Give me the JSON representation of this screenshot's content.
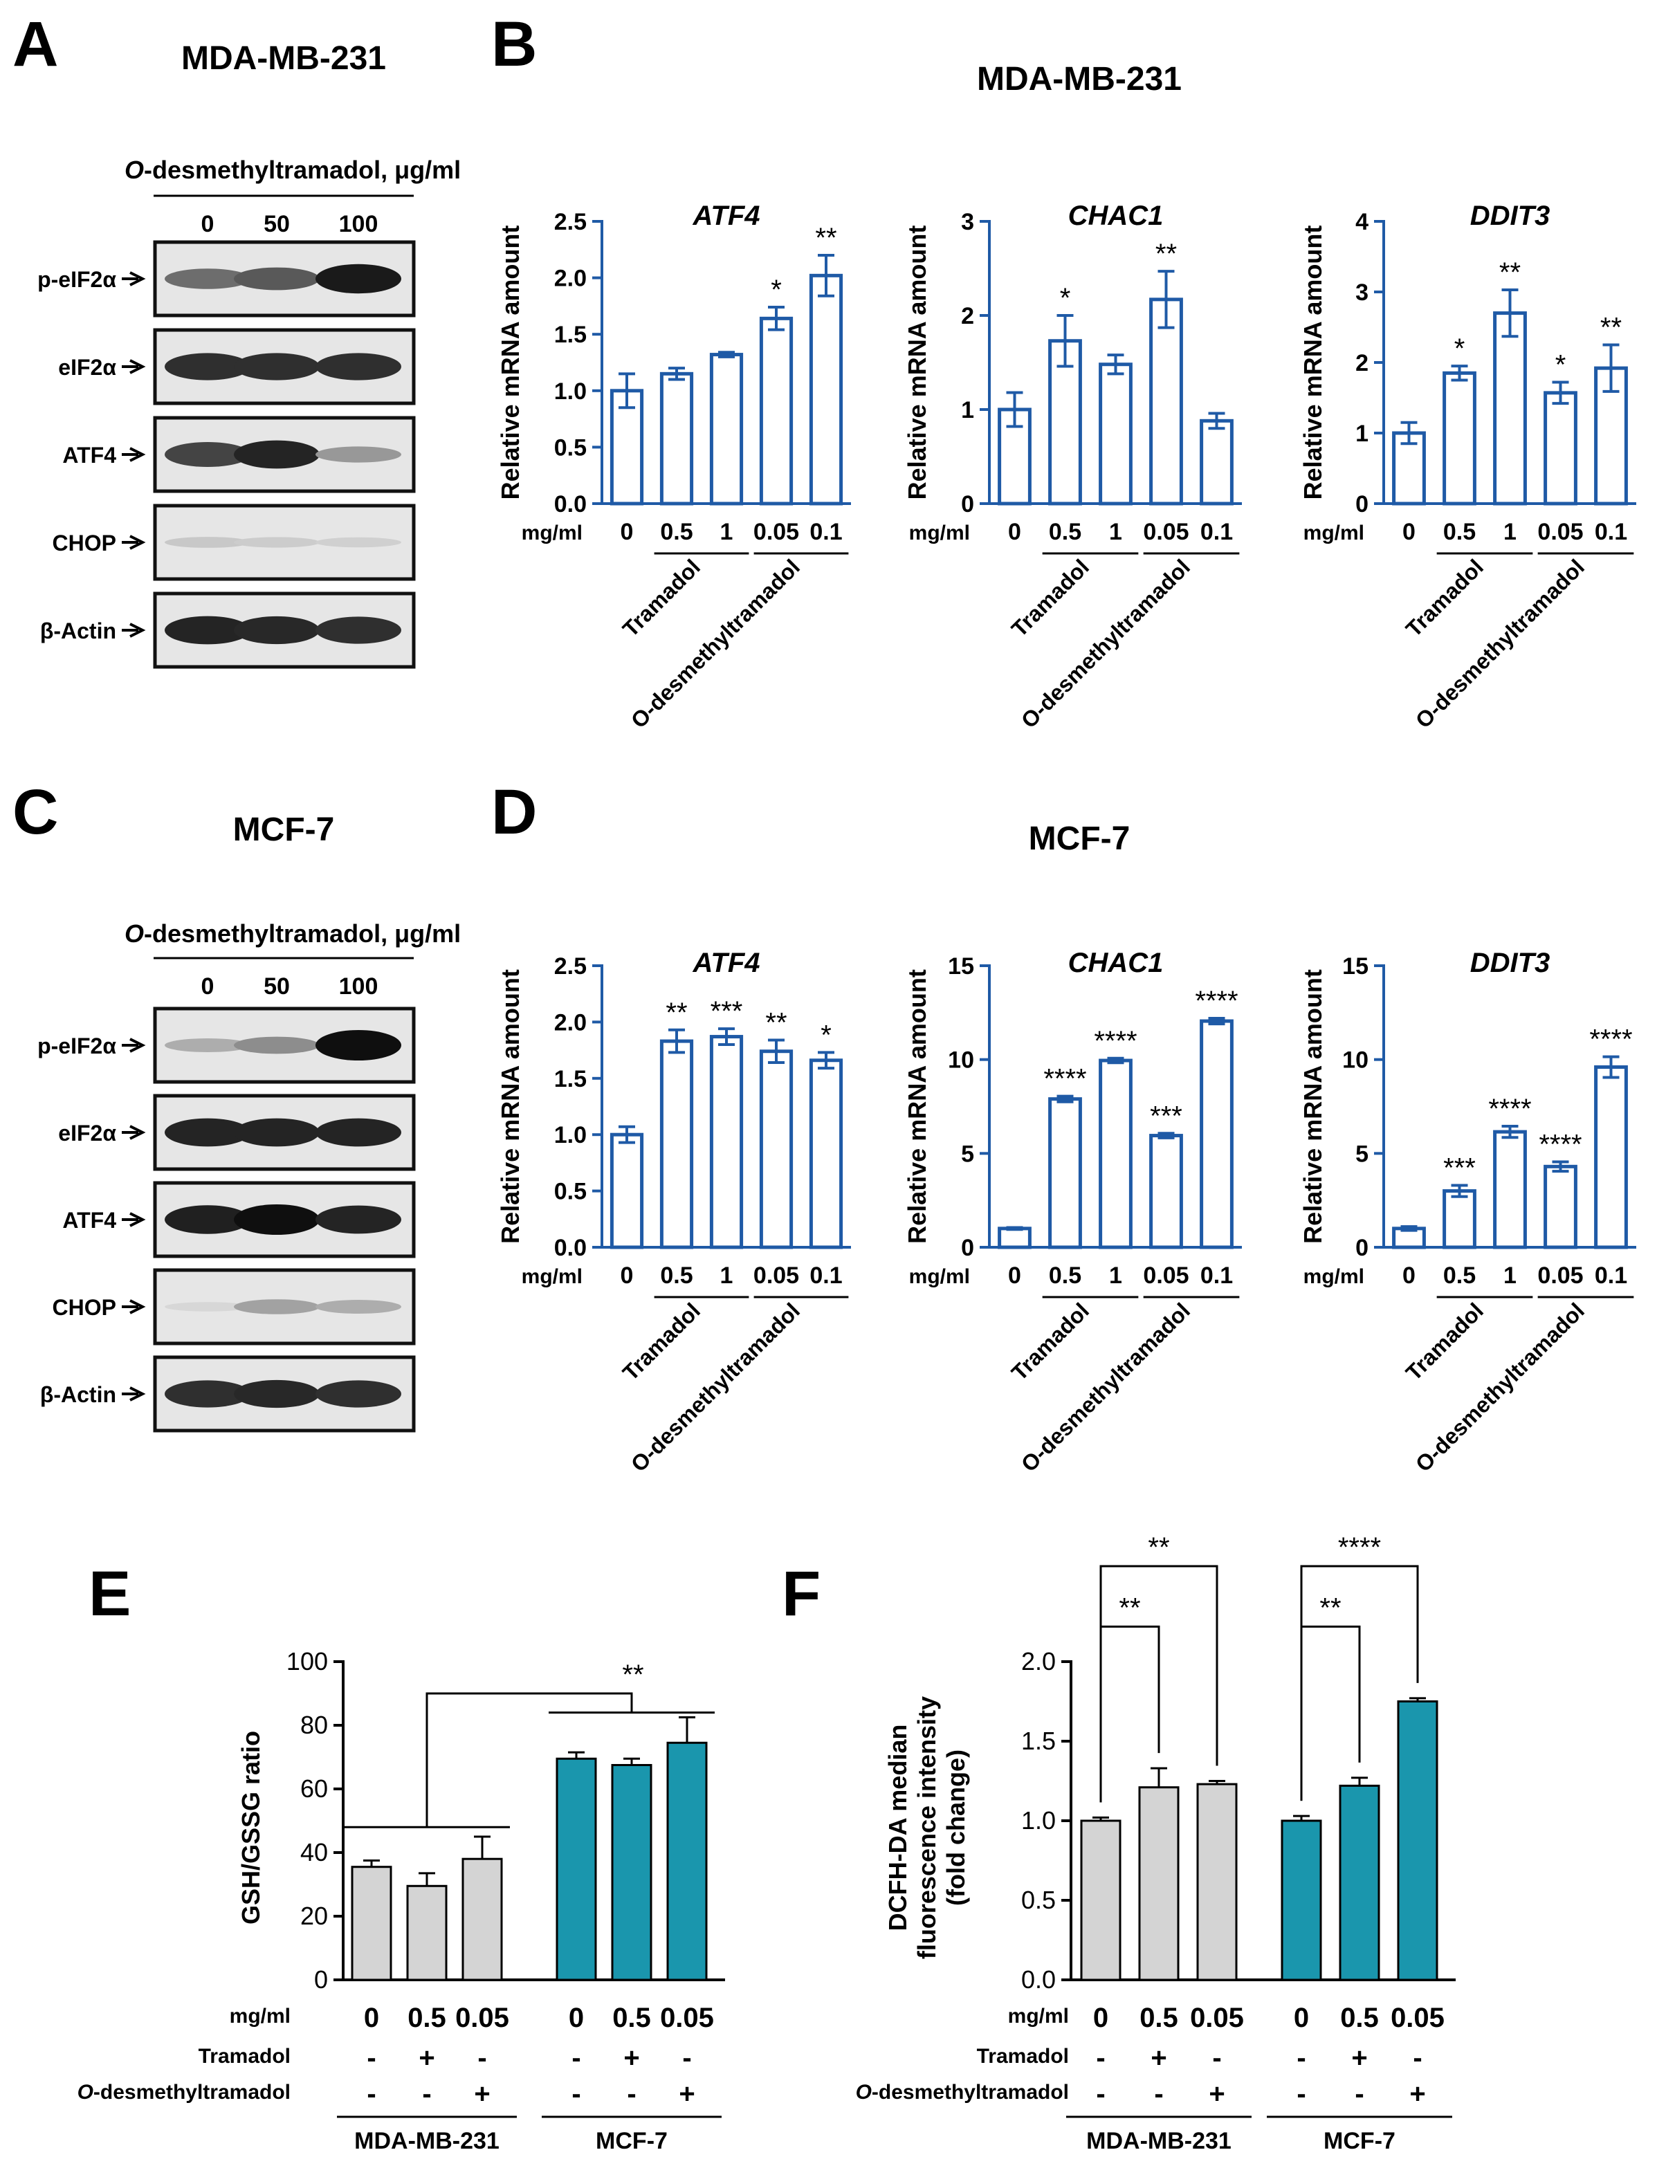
{
  "colors": {
    "blue": "#1f5aa6",
    "teal": "#1a96ad",
    "gray": "#d4d4d4",
    "ink": "#000000"
  },
  "panel_labels": {
    "A": "A",
    "B": "B",
    "C": "C",
    "D": "D",
    "E": "E",
    "F": "F"
  },
  "blots": [
    {
      "id": "A",
      "title": "MDA-MB-231",
      "treatment_label": "O-desmethyltramadol, μg/ml",
      "treatment_prefix": "O",
      "treatment_rest": "-desmethyltramadol, μg/ml",
      "doses": [
        "0",
        "50",
        "100"
      ],
      "rows": [
        {
          "label": "p-eIF2α",
          "bands": [
            0.55,
            0.65,
            0.95
          ]
        },
        {
          "label": "eIF2α",
          "bands": [
            0.85,
            0.85,
            0.85
          ]
        },
        {
          "label": "ATF4",
          "bands": [
            0.75,
            0.9,
            0.35
          ]
        },
        {
          "label": "CHOP",
          "bands": [
            0.12,
            0.1,
            0.08
          ]
        },
        {
          "label": "β-Actin",
          "bands": [
            0.9,
            0.88,
            0.85
          ]
        }
      ]
    },
    {
      "id": "C",
      "title": "MCF-7",
      "treatment_label": "O-desmethyltramadol, μg/ml",
      "treatment_prefix": "O",
      "treatment_rest": "-desmethyltramadol, μg/ml",
      "doses": [
        "0",
        "50",
        "100"
      ],
      "rows": [
        {
          "label": "p-eIF2α",
          "bands": [
            0.25,
            0.4,
            1.0
          ]
        },
        {
          "label": "eIF2α",
          "bands": [
            0.9,
            0.9,
            0.9
          ]
        },
        {
          "label": "ATF4",
          "bands": [
            0.92,
            1.0,
            0.9
          ]
        },
        {
          "label": "CHOP",
          "bands": [
            0.05,
            0.3,
            0.25
          ]
        },
        {
          "label": "β-Actin",
          "bands": [
            0.85,
            0.88,
            0.85
          ]
        }
      ]
    }
  ],
  "chart_data": [
    {
      "type": "bar",
      "panel": "B",
      "cell_line": "MDA-MB-231",
      "title": "ATF4",
      "ylabel": "Relative mRNA amount",
      "unit_label": "mg/ml",
      "categories": [
        "0",
        "0.5",
        "1",
        "0.05",
        "0.1"
      ],
      "values": [
        1.0,
        1.15,
        1.32,
        1.64,
        2.02
      ],
      "errors": [
        0.15,
        0.05,
        0.02,
        0.1,
        0.18
      ],
      "significance": [
        "",
        "",
        "",
        "*",
        "**"
      ],
      "ylim": [
        0,
        2.5
      ],
      "yticks": [
        "0.0",
        "0.5",
        "1.0",
        "1.5",
        "2.0",
        "2.5"
      ],
      "groups": [
        "Tramadol",
        "O-desmethyltramadol"
      ]
    },
    {
      "type": "bar",
      "panel": "B",
      "cell_line": "MDA-MB-231",
      "title": "CHAC1",
      "ylabel": "Relative mRNA amount",
      "unit_label": "mg/ml",
      "categories": [
        "0",
        "0.5",
        "1",
        "0.05",
        "0.1"
      ],
      "values": [
        1.0,
        1.73,
        1.48,
        2.17,
        0.88
      ],
      "errors": [
        0.18,
        0.27,
        0.1,
        0.3,
        0.08
      ],
      "significance": [
        "",
        "*",
        "",
        "**",
        ""
      ],
      "ylim": [
        0,
        3
      ],
      "yticks": [
        "0",
        "1",
        "2",
        "3"
      ],
      "groups": [
        "Tramadol",
        "O-desmethyltramadol"
      ]
    },
    {
      "type": "bar",
      "panel": "B",
      "cell_line": "MDA-MB-231",
      "title": "DDIT3",
      "ylabel": "Relative mRNA amount",
      "unit_label": "mg/ml",
      "categories": [
        "0",
        "0.5",
        "1",
        "0.05",
        "0.1"
      ],
      "values": [
        1.0,
        1.85,
        2.7,
        1.57,
        1.92
      ],
      "errors": [
        0.15,
        0.1,
        0.33,
        0.15,
        0.33
      ],
      "significance": [
        "",
        "*",
        "**",
        "*",
        "**"
      ],
      "ylim": [
        0,
        4
      ],
      "yticks": [
        "0",
        "1",
        "2",
        "3",
        "4"
      ],
      "groups": [
        "Tramadol",
        "O-desmethyltramadol"
      ]
    },
    {
      "type": "bar",
      "panel": "D",
      "cell_line": "MCF-7",
      "title": "ATF4",
      "ylabel": "Relative mRNA amount",
      "unit_label": "mg/ml",
      "categories": [
        "0",
        "0.5",
        "1",
        "0.05",
        "0.1"
      ],
      "values": [
        1.0,
        1.83,
        1.87,
        1.74,
        1.66
      ],
      "errors": [
        0.07,
        0.1,
        0.07,
        0.1,
        0.07
      ],
      "significance": [
        "",
        "**",
        "***",
        "**",
        "*"
      ],
      "ylim": [
        0,
        2.5
      ],
      "yticks": [
        "0.0",
        "0.5",
        "1.0",
        "1.5",
        "2.0",
        "2.5"
      ],
      "groups": [
        "Tramadol",
        "O-desmethyltramadol"
      ]
    },
    {
      "type": "bar",
      "panel": "D",
      "cell_line": "MCF-7",
      "title": "CHAC1",
      "ylabel": "Relative mRNA amount",
      "unit_label": "mg/ml",
      "categories": [
        "0",
        "0.5",
        "1",
        "0.05",
        "0.1"
      ],
      "values": [
        1.0,
        7.9,
        9.95,
        5.95,
        12.05
      ],
      "errors": [
        0.05,
        0.15,
        0.12,
        0.12,
        0.15
      ],
      "significance": [
        "",
        "****",
        "****",
        "***",
        "****"
      ],
      "ylim": [
        0,
        15
      ],
      "yticks": [
        "0",
        "5",
        "10",
        "15"
      ],
      "groups": [
        "Tramadol",
        "O-desmethyltramadol"
      ]
    },
    {
      "type": "bar",
      "panel": "D",
      "cell_line": "MCF-7",
      "title": "DDIT3",
      "ylabel": "Relative mRNA amount",
      "unit_label": "mg/ml",
      "categories": [
        "0",
        "0.5",
        "1",
        "0.05",
        "0.1"
      ],
      "values": [
        1.0,
        3.0,
        6.15,
        4.3,
        9.6
      ],
      "errors": [
        0.1,
        0.3,
        0.3,
        0.25,
        0.55
      ],
      "significance": [
        "",
        "***",
        "****",
        "****",
        "****"
      ],
      "ylim": [
        0,
        15
      ],
      "yticks": [
        "0",
        "5",
        "10",
        "15"
      ],
      "groups": [
        "Tramadol",
        "O-desmethyltramadol"
      ]
    },
    {
      "type": "bar",
      "panel": "E",
      "ylabel": "GSH/GSSG ratio",
      "unit_label": "mg/ml",
      "categories": [
        "0",
        "0.5",
        "0.05",
        "0",
        "0.5",
        "0.05"
      ],
      "values": [
        35.5,
        29.5,
        38.0,
        69.5,
        67.5,
        74.5
      ],
      "errors": [
        2.0,
        4.0,
        7.0,
        2.0,
        2.0,
        8.0
      ],
      "groups": [
        "MDA-MB-231",
        "MCF-7"
      ],
      "ylim": [
        0,
        100
      ],
      "yticks": [
        "0",
        "20",
        "40",
        "60",
        "80",
        "100"
      ],
      "row_labels": [
        "Tramadol",
        "O-desmethyltramadol"
      ],
      "tramadol": [
        "-",
        "+",
        "-",
        "-",
        "+",
        "-"
      ],
      "odesmethyltramadol": [
        "-",
        "-",
        "+",
        "-",
        "-",
        "+"
      ],
      "significance": "**"
    },
    {
      "type": "bar",
      "panel": "F",
      "ylabel_lines": [
        "DCFH-DA median",
        "fluorescence intensity",
        "(fold change)"
      ],
      "unit_label": "mg/ml",
      "categories": [
        "0",
        "0.5",
        "0.05",
        "0",
        "0.5",
        "0.05"
      ],
      "values": [
        1.0,
        1.21,
        1.23,
        1.0,
        1.22,
        1.75
      ],
      "errors": [
        0.02,
        0.12,
        0.02,
        0.03,
        0.05,
        0.02
      ],
      "groups": [
        "MDA-MB-231",
        "MCF-7"
      ],
      "ylim": [
        0,
        2.0
      ],
      "yticks": [
        "0.0",
        "0.5",
        "1.0",
        "1.5",
        "2.0"
      ],
      "row_labels": [
        "Tramadol",
        "O-desmethyltramadol"
      ],
      "tramadol": [
        "-",
        "+",
        "-",
        "-",
        "+",
        "-"
      ],
      "odesmethyltramadol": [
        "-",
        "-",
        "+",
        "-",
        "-",
        "+"
      ],
      "comparisons": [
        {
          "from": 0,
          "to": 1,
          "label": "**"
        },
        {
          "from": 0,
          "to": 2,
          "label": "**"
        },
        {
          "from": 3,
          "to": 4,
          "label": "**"
        },
        {
          "from": 3,
          "to": 5,
          "label": "****"
        }
      ]
    }
  ]
}
